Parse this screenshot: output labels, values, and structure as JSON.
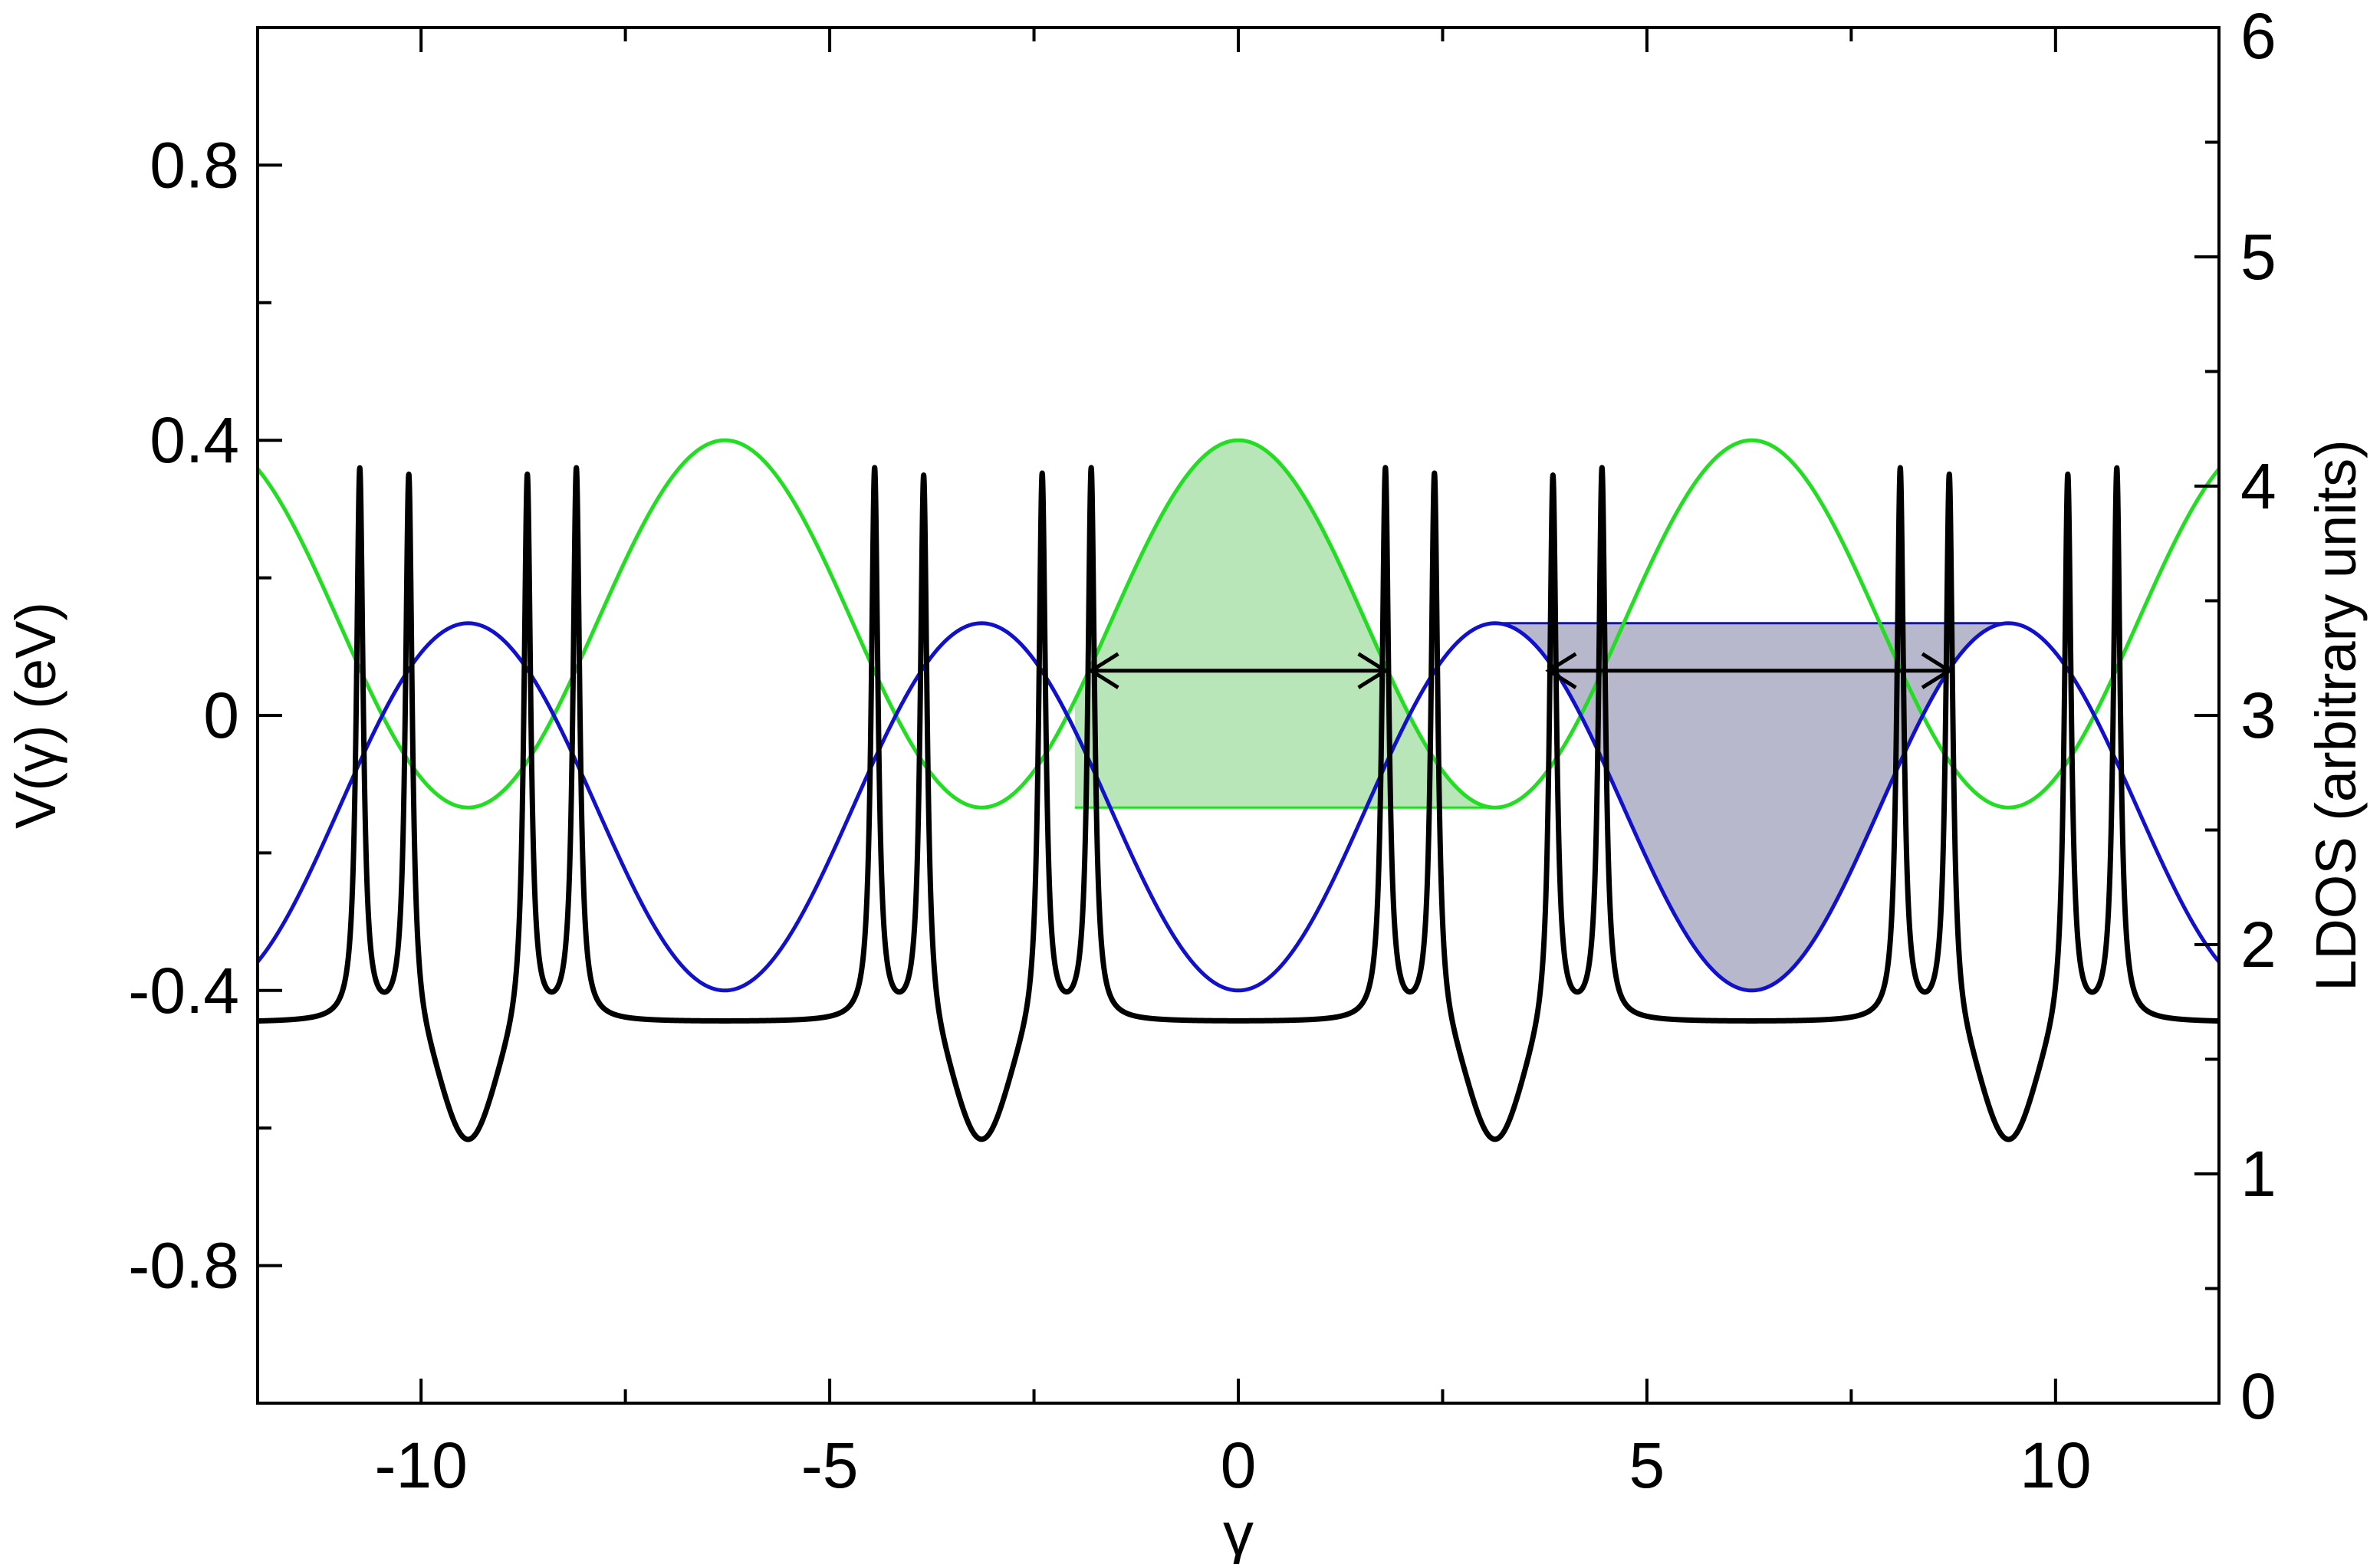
{
  "chart_data": {
    "type": "line",
    "title": "",
    "xlabel": "γ",
    "ylabel_left": "V(γ) (eV)",
    "ylabel_right": "LDOS (arbitrary units)",
    "xlim": [
      -12,
      12
    ],
    "ylim_left": [
      -1.0,
      1.0
    ],
    "ylim_right": [
      0,
      6
    ],
    "grid": false,
    "legend": "none",
    "x_ticks": [
      {
        "value": -10,
        "label": "-10"
      },
      {
        "value": -5,
        "label": "-5"
      },
      {
        "value": 0,
        "label": "0"
      },
      {
        "value": 5,
        "label": "5"
      },
      {
        "value": 10,
        "label": "10"
      }
    ],
    "y_left_ticks": [
      {
        "value": -0.8,
        "label": "-0.8"
      },
      {
        "value": -0.4,
        "label": "-0.4"
      },
      {
        "value": 0,
        "label": "0"
      },
      {
        "value": 0.4,
        "label": "0.4"
      },
      {
        "value": 0.8,
        "label": "0.8"
      }
    ],
    "y_right_ticks": [
      {
        "value": 0,
        "label": "0"
      },
      {
        "value": 1,
        "label": "1"
      },
      {
        "value": 2,
        "label": "2"
      },
      {
        "value": 3,
        "label": "3"
      },
      {
        "value": 4,
        "label": "4"
      },
      {
        "value": 5,
        "label": "5"
      },
      {
        "value": 6,
        "label": "6"
      }
    ],
    "series": [
      {
        "id": "green-band",
        "axis": "left",
        "color": "#22dd22",
        "function": "0.133 + 0.267*cos(x)",
        "min": -0.134,
        "max": 0.4
      },
      {
        "id": "blue-band",
        "axis": "left",
        "color": "#1111cc",
        "function": "-0.133 - 0.267*cos(x)",
        "min": -0.4,
        "max": 0.134
      },
      {
        "id": "ldos",
        "axis": "right",
        "color": "#000000",
        "baseline_flat": 1.66,
        "baseline_min": 1.12,
        "between_spikes_min": 1.97,
        "spike_positions": [
          -10.75,
          -10.15,
          -8.7,
          -8.1,
          -4.45,
          -3.85,
          -2.4,
          -1.8,
          1.8,
          2.4,
          3.85,
          4.45,
          8.1,
          8.7,
          10.15,
          10.75
        ]
      }
    ],
    "shaded_regions": [
      {
        "id": "green-fill",
        "color": "#b8e6b8",
        "x_range": [
          -2.0,
          3.1
        ],
        "level": -0.134
      },
      {
        "id": "blue-fill",
        "color": "#b8b8cc",
        "x_range": [
          3.1,
          9.42
        ],
        "level": 0.134
      }
    ],
    "annotations": [
      {
        "id": "green-arrow",
        "type": "double-arrow",
        "x_from": -1.8,
        "x_to": 1.8,
        "y": 0.065
      },
      {
        "id": "blue-arrow",
        "type": "double-arrow",
        "x_from": 3.8,
        "x_to": 8.7,
        "y": 0.065
      }
    ]
  }
}
